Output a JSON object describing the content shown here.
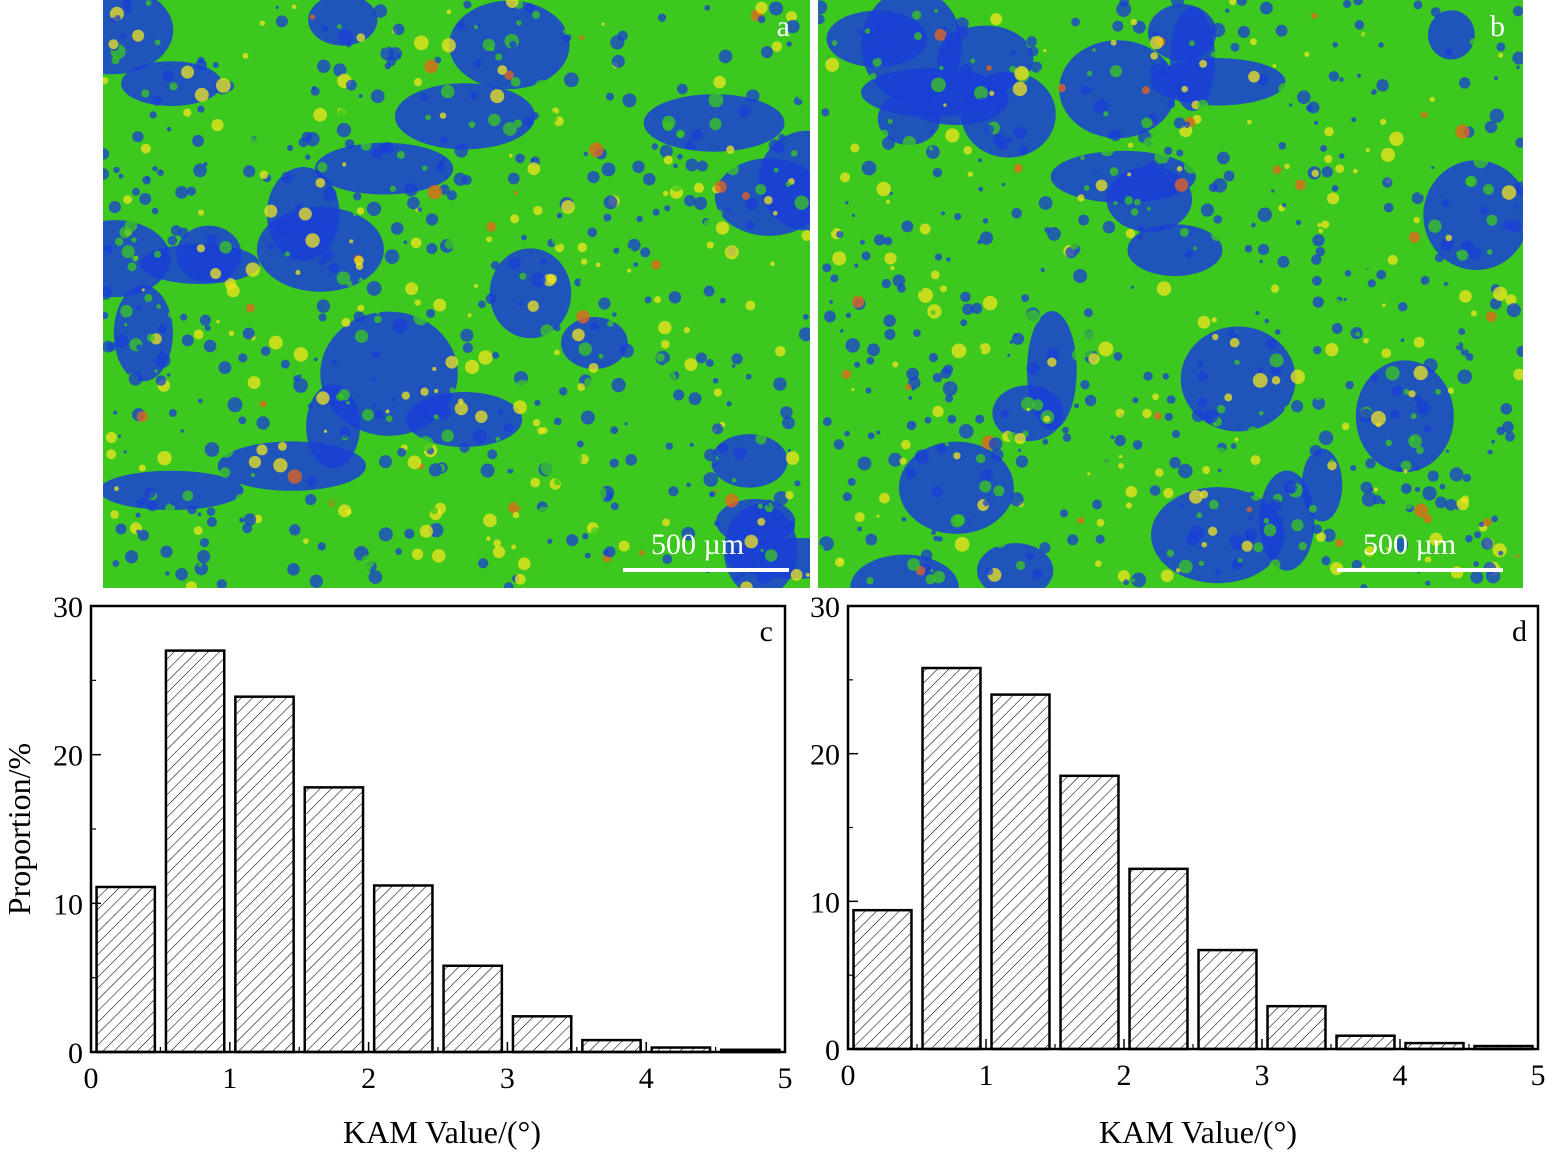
{
  "micrographs": [
    {
      "id": "a",
      "label": "a",
      "scale_bar": "500 µm",
      "colors": {
        "low": "#1a3fd6",
        "mid": "#3cc81e",
        "high": "#f2e61e",
        "peak": "#e8641e"
      }
    },
    {
      "id": "b",
      "label": "b",
      "scale_bar": "500 µm",
      "colors": {
        "low": "#1a3fd6",
        "mid": "#3cc81e",
        "high": "#f2e61e",
        "peak": "#e8641e"
      }
    }
  ],
  "chart_data": [
    {
      "type": "bar",
      "panel": "c",
      "xlabel": "KAM Value/(°)",
      "ylabel": "Proportion/%",
      "xlim": [
        0,
        5
      ],
      "ylim": [
        0,
        30
      ],
      "xticks": [
        0,
        1,
        2,
        3,
        4,
        5
      ],
      "yticks": [
        0,
        10,
        20,
        30
      ],
      "bin_width": 0.5,
      "x": [
        0.5,
        1.0,
        1.5,
        2.0,
        2.5,
        3.0,
        3.5,
        4.0,
        4.5,
        5.0
      ],
      "values": [
        11.1,
        27.0,
        23.9,
        17.8,
        11.2,
        5.8,
        2.4,
        0.8,
        0.3,
        0.15
      ],
      "fill": "hatched"
    },
    {
      "type": "bar",
      "panel": "d",
      "xlabel": "KAM Value/(°)",
      "ylabel": "",
      "xlim": [
        0,
        5
      ],
      "ylim": [
        0,
        30
      ],
      "xticks": [
        0,
        1,
        2,
        3,
        4,
        5
      ],
      "yticks": [
        0,
        10,
        20,
        30
      ],
      "bin_width": 0.5,
      "x": [
        0.5,
        1.0,
        1.5,
        2.0,
        2.5,
        3.0,
        3.5,
        4.0,
        4.5,
        5.0
      ],
      "values": [
        9.4,
        25.8,
        24.0,
        18.5,
        12.2,
        6.7,
        2.9,
        0.9,
        0.4,
        0.2
      ],
      "fill": "hatched"
    }
  ]
}
